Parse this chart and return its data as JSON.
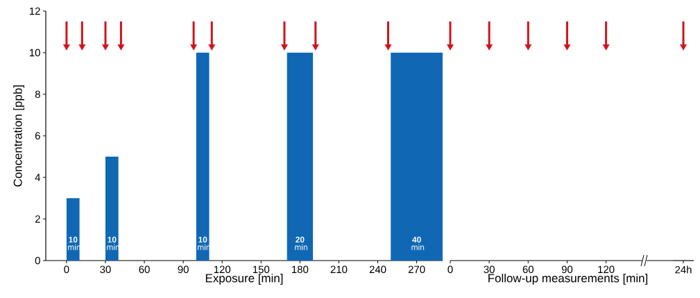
{
  "chart_data": [
    {
      "type": "histogram",
      "xlabel": "Exposure [min]",
      "ylabel": "Concentration [ppb]",
      "bins": [
        0,
        10,
        30,
        40,
        100,
        110,
        170,
        190,
        250,
        290
      ],
      "values": [
        3,
        0,
        5,
        0,
        10,
        0,
        10,
        0,
        10
      ],
      "color": "#1068b4",
      "xlim": [
        -16,
        290
      ],
      "ylim": [
        0,
        12
      ],
      "xticks": [
        0,
        30,
        60,
        90,
        120,
        150,
        180,
        210,
        240,
        270
      ],
      "yticks": [
        0,
        2,
        4,
        6,
        8,
        10,
        12
      ],
      "series": [
        {
          "type": "scatter",
          "x": [
            0,
            12,
            30,
            42,
            98,
            112,
            168,
            192,
            248
          ],
          "values": [
            10.3,
            10.3,
            10.3,
            10.3,
            10.3,
            10.3,
            10.3,
            10.3,
            10.3
          ],
          "color": "#d0141c",
          "marker": "triangle"
        }
      ],
      "annotations": [
        "**10** min",
        "**10** min",
        "**10** min",
        "**20** min",
        "**40** min"
      ]
    },
    {
      "type": "scatter",
      "xlabel": "Follow-up measurements [min]",
      "xlim": [
        0,
        148
      ],
      "ylim": [
        0,
        12
      ],
      "xticks": [
        0,
        30,
        60,
        90,
        120
      ],
      "tick_labels": "x",
      "series": [
        {
          "type": "scatter",
          "x": [
            0,
            30,
            60,
            90,
            120
          ],
          "values": [
            10.3,
            10.3,
            10.3,
            10.3,
            10.3
          ],
          "color": "#d0141c",
          "marker": "triangle"
        }
      ]
    },
    {
      "type": "scatter",
      "categories": [
        "24h"
      ],
      "ylim": [
        0,
        12
      ],
      "tick_labels": "x",
      "series": [
        {
          "type": "scatter",
          "values": [
            10.3
          ],
          "color": "#d0141c",
          "marker": "triangle"
        }
      ]
    }
  ]
}
